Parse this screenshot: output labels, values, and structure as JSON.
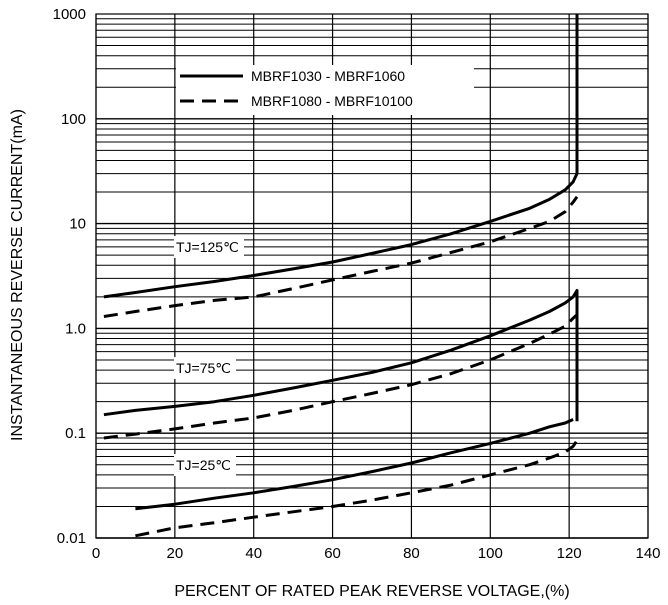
{
  "chart_data": {
    "type": "line",
    "xlabel": "PERCENT OF RATED PEAK REVERSE VOLTAGE,(%)",
    "ylabel": "INSTANTANEOUS REVERSE CURRENT(mA)",
    "xlim": [
      0,
      140
    ],
    "ylim": [
      0.01,
      1000
    ],
    "yscale": "log",
    "grid": true,
    "legend_position": "top-center",
    "x_ticks": [
      0,
      20,
      40,
      60,
      80,
      100,
      120,
      140
    ],
    "x_tick_labels": [
      "0",
      "20",
      "40",
      "60",
      "80",
      "100",
      "120",
      "140"
    ],
    "y_ticks": [
      0.01,
      0.1,
      1,
      10,
      100,
      1000
    ],
    "y_tick_labels": [
      "0.01",
      "0.1",
      "1.0",
      "10",
      "100",
      "1000"
    ],
    "legend": [
      {
        "label": "MBRF1030 - MBRF1060",
        "style": "solid"
      },
      {
        "label": "MBRF1080 - MBRF10100",
        "style": "dashed"
      }
    ],
    "annotations": [
      {
        "text": "TJ=125℃",
        "x": 20,
        "y": 3.5
      },
      {
        "text": "TJ=75℃",
        "x": 20,
        "y": 0.24
      },
      {
        "text": "TJ=25℃",
        "x": 20,
        "y": 0.016
      }
    ],
    "series": [
      {
        "style": "solid",
        "group": "TJ=125℃",
        "points": [
          [
            2,
            2.0
          ],
          [
            10,
            2.2
          ],
          [
            20,
            2.5
          ],
          [
            30,
            2.8
          ],
          [
            40,
            3.2
          ],
          [
            50,
            3.7
          ],
          [
            60,
            4.3
          ],
          [
            70,
            5.2
          ],
          [
            80,
            6.3
          ],
          [
            90,
            8.0
          ],
          [
            100,
            10.5
          ],
          [
            110,
            14.0
          ],
          [
            115,
            17.0
          ],
          [
            119,
            21.0
          ],
          [
            121,
            25.0
          ],
          [
            122,
            30.0
          ],
          [
            122,
            1000
          ]
        ]
      },
      {
        "style": "dashed",
        "group": "TJ=125℃",
        "points": [
          [
            2,
            1.3
          ],
          [
            10,
            1.45
          ],
          [
            20,
            1.65
          ],
          [
            30,
            1.85
          ],
          [
            40,
            2.0
          ],
          [
            50,
            2.4
          ],
          [
            60,
            2.9
          ],
          [
            70,
            3.5
          ],
          [
            80,
            4.2
          ],
          [
            90,
            5.3
          ],
          [
            100,
            6.7
          ],
          [
            110,
            9.0
          ],
          [
            115,
            10.5
          ],
          [
            119,
            13.0
          ],
          [
            121,
            16.0
          ],
          [
            122,
            18.0
          ]
        ]
      },
      {
        "style": "solid",
        "group": "TJ=75℃",
        "points": [
          [
            2,
            0.15
          ],
          [
            10,
            0.165
          ],
          [
            20,
            0.18
          ],
          [
            30,
            0.2
          ],
          [
            40,
            0.23
          ],
          [
            50,
            0.27
          ],
          [
            60,
            0.32
          ],
          [
            70,
            0.38
          ],
          [
            80,
            0.47
          ],
          [
            90,
            0.62
          ],
          [
            100,
            0.85
          ],
          [
            110,
            1.2
          ],
          [
            115,
            1.45
          ],
          [
            119,
            1.75
          ],
          [
            121,
            2.0
          ],
          [
            122,
            2.3
          ],
          [
            122,
            0.13
          ]
        ]
      },
      {
        "style": "dashed",
        "group": "TJ=75℃",
        "points": [
          [
            2,
            0.09
          ],
          [
            10,
            0.098
          ],
          [
            20,
            0.11
          ],
          [
            30,
            0.125
          ],
          [
            40,
            0.14
          ],
          [
            50,
            0.165
          ],
          [
            60,
            0.2
          ],
          [
            70,
            0.24
          ],
          [
            80,
            0.29
          ],
          [
            90,
            0.37
          ],
          [
            100,
            0.5
          ],
          [
            110,
            0.72
          ],
          [
            115,
            0.88
          ],
          [
            119,
            1.05
          ],
          [
            121,
            1.25
          ],
          [
            122,
            1.35
          ]
        ]
      },
      {
        "style": "solid",
        "group": "TJ=25℃",
        "points": [
          [
            10,
            0.019
          ],
          [
            20,
            0.021
          ],
          [
            30,
            0.024
          ],
          [
            40,
            0.027
          ],
          [
            50,
            0.031
          ],
          [
            60,
            0.036
          ],
          [
            70,
            0.043
          ],
          [
            80,
            0.052
          ],
          [
            90,
            0.065
          ],
          [
            100,
            0.08
          ],
          [
            110,
            0.1
          ],
          [
            115,
            0.115
          ],
          [
            119,
            0.125
          ],
          [
            121,
            0.135
          ]
        ]
      },
      {
        "style": "dashed",
        "group": "TJ=25℃",
        "points": [
          [
            10,
            0.0105
          ],
          [
            20,
            0.0125
          ],
          [
            30,
            0.014
          ],
          [
            40,
            0.0158
          ],
          [
            50,
            0.0178
          ],
          [
            60,
            0.02
          ],
          [
            70,
            0.023
          ],
          [
            80,
            0.027
          ],
          [
            90,
            0.032
          ],
          [
            100,
            0.04
          ],
          [
            110,
            0.05
          ],
          [
            115,
            0.058
          ],
          [
            119,
            0.066
          ],
          [
            121,
            0.075
          ],
          [
            122,
            0.085
          ]
        ]
      }
    ]
  }
}
